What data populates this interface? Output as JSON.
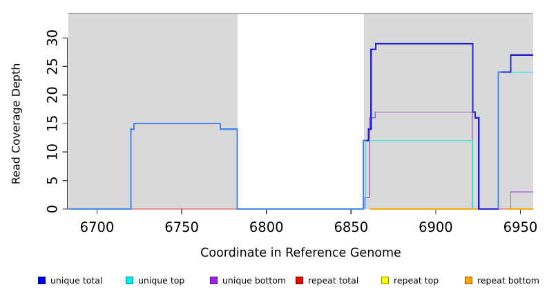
{
  "figure": {
    "background": "#FFFFFF"
  },
  "chart_data": {
    "type": "line",
    "title": "",
    "xlabel": "Coordinate in Reference Genome",
    "ylabel": "Read Coverage Depth",
    "xlim": [
      6683,
      6957.6
    ],
    "ylim": [
      0,
      34.2
    ],
    "xticks": [
      6700,
      6750,
      6800,
      6850,
      6900,
      6950
    ],
    "yticks": [
      0,
      5,
      10,
      15,
      20,
      25,
      30
    ],
    "grid": false,
    "legend_position": "bottom",
    "shade_color": "#D9D9D9",
    "shade_border_color": "#A8A8A8",
    "shaded_regions": [
      {
        "x0": 6683,
        "x1": 6783
      },
      {
        "x0": 6857.6,
        "x1": 6957.6
      }
    ],
    "series": [
      {
        "name": "repeat bottom",
        "color": "#FFA500",
        "width": 2,
        "segments": [
          [
            [
              6861,
              0
            ],
            [
              6925.4,
              0
            ]
          ],
          [
            [
              6942,
              0
            ],
            [
              6957.6,
              0
            ]
          ]
        ]
      },
      {
        "name": "repeat total",
        "color": "#E03A3A",
        "width": 1.4,
        "segments": [
          [
            [
              6720,
              0
            ],
            [
              6783,
              0
            ]
          ],
          [
            [
              6937,
              0
            ],
            [
              6942,
              0
            ]
          ]
        ]
      },
      {
        "name": "unique bottom",
        "color": "#A45CE8",
        "width": 1.4,
        "segments": [
          [
            [
              6783,
              0
            ],
            [
              6857,
              0
            ]
          ],
          [
            [
              6858.2,
              0
            ],
            [
              6858.2,
              2
            ],
            [
              6861,
              2
            ],
            [
              6861,
              16
            ],
            [
              6864.2,
              16
            ],
            [
              6864.2,
              17
            ],
            [
              6921.6,
              17
            ],
            [
              6921.6,
              0
            ]
          ],
          [
            [
              6944.3,
              0
            ],
            [
              6944.3,
              3
            ],
            [
              6957.6,
              3
            ]
          ]
        ]
      },
      {
        "name": "unique top",
        "color": "#45E2E2",
        "width": 1.4,
        "segments": [
          [
            [
              6858.6,
              0
            ],
            [
              6858.6,
              12
            ],
            [
              6921.8,
              12
            ],
            [
              6921.8,
              0
            ]
          ],
          [
            [
              6937,
              0
            ],
            [
              6937,
              24
            ],
            [
              6957.6,
              24
            ]
          ]
        ]
      },
      {
        "name": "unique total",
        "color": "#2222D0",
        "width": 2.2,
        "segments": [
          [
            [
              6859,
              12
            ],
            [
              6860.3,
              12
            ],
            [
              6860.3,
              14
            ],
            [
              6861.8,
              14
            ],
            [
              6861.8,
              28
            ],
            [
              6864.5,
              28
            ],
            [
              6864.5,
              29
            ],
            [
              6921.9,
              29
            ],
            [
              6921.9,
              17
            ],
            [
              6923.3,
              17
            ],
            [
              6923.3,
              16
            ],
            [
              6925.4,
              16
            ],
            [
              6925.4,
              0
            ],
            [
              6937,
              0
            ],
            [
              6937,
              24
            ],
            [
              6944.3,
              24
            ],
            [
              6944.3,
              27
            ],
            [
              6957.6,
              27
            ]
          ]
        ]
      },
      {
        "name": "unique total (overlap with unique top)",
        "color": "#4286F2",
        "width": 2.2,
        "segments": [
          [
            [
              6683,
              0
            ],
            [
              6720,
              0
            ],
            [
              6720,
              14
            ],
            [
              6721.8,
              14
            ],
            [
              6721.8,
              15
            ],
            [
              6772.8,
              15
            ],
            [
              6772.8,
              14
            ],
            [
              6782.8,
              14
            ],
            [
              6782.8,
              0
            ],
            [
              6857.2,
              0
            ],
            [
              6857.2,
              12
            ],
            [
              6859,
              12
            ]
          ],
          [
            [
              6937,
              0
            ],
            [
              6937,
              24
            ],
            [
              6938.6,
              24
            ]
          ]
        ]
      }
    ],
    "legend": [
      {
        "label": "unique total",
        "color": "#0000EE"
      },
      {
        "label": "unique top",
        "color": "#00EEEE"
      },
      {
        "label": "unique bottom",
        "color": "#A020F0"
      },
      {
        "label": "repeat total",
        "color": "#EE0000"
      },
      {
        "label": "repeat top",
        "color": "#FFFF00"
      },
      {
        "label": "repeat bottom",
        "color": "#FFA500"
      }
    ]
  }
}
